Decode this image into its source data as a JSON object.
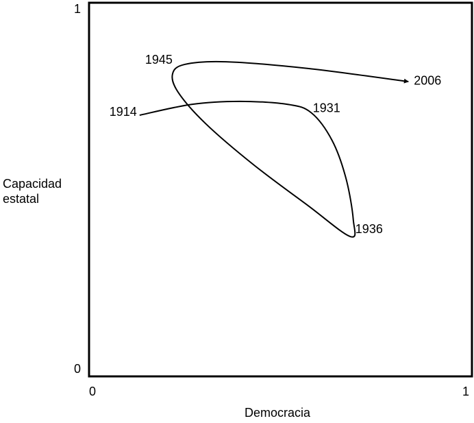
{
  "chart_data": {
    "type": "line",
    "x_label": "Democracia",
    "y_label": [
      "Capacidad",
      "estatal"
    ],
    "x": [
      0.132,
      0.268,
      0.394,
      0.519,
      0.581,
      0.635,
      0.671,
      0.69,
      0.683,
      0.572,
      0.429,
      0.304,
      0.233,
      0.218,
      0.25,
      0.358,
      0.572,
      0.834
    ],
    "values": [
      0.699,
      0.728,
      0.736,
      0.728,
      0.705,
      0.631,
      0.53,
      0.42,
      0.374,
      0.457,
      0.567,
      0.677,
      0.76,
      0.809,
      0.835,
      0.842,
      0.824,
      0.789
    ],
    "point_labels": [
      "1914",
      null,
      null,
      null,
      "1931",
      null,
      null,
      null,
      "1936",
      null,
      null,
      null,
      null,
      "1945",
      null,
      null,
      null,
      "2006"
    ],
    "color": "#000000",
    "xlim": [
      0,
      1
    ],
    "xticks": [
      0,
      1
    ],
    "ylim": [
      0,
      1
    ],
    "yticks": [
      0,
      1
    ],
    "grid": false
  }
}
